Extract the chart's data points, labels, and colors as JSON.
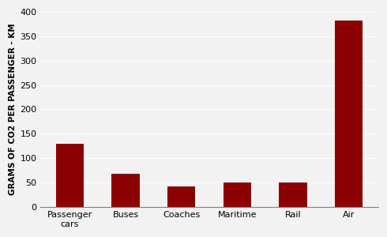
{
  "categories": [
    "Passenger\ncars",
    "Buses",
    "Coaches",
    "Maritime",
    "Rail",
    "Air"
  ],
  "values": [
    130,
    68,
    42,
    50,
    50,
    382
  ],
  "bar_color": "#8B0000",
  "ylabel": "GRAMS OF CO2 PER PASSENGER - KM",
  "ylim": [
    0,
    400
  ],
  "yticks": [
    0,
    50,
    100,
    150,
    200,
    250,
    300,
    350,
    400
  ],
  "grid": true,
  "bar_width": 0.5,
  "ylabel_fontsize": 7.5,
  "tick_fontsize": 8,
  "bg_color": "#F2F2F2",
  "figure_bg": "#F2F2F2"
}
